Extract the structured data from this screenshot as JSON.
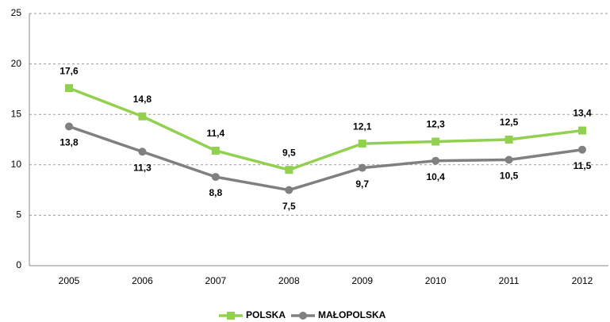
{
  "chart_data": {
    "type": "line",
    "categories": [
      "2005",
      "2006",
      "2007",
      "2008",
      "2009",
      "2010",
      "2011",
      "2012"
    ],
    "series": [
      {
        "name": "POLSKA",
        "color": "#92d050",
        "marker": "square",
        "label_position": "above",
        "values": [
          17.6,
          14.8,
          11.4,
          9.5,
          12.1,
          12.3,
          12.5,
          13.4
        ],
        "value_labels": [
          "17,6",
          "14,8",
          "11,4",
          "9,5",
          "12,1",
          "12,3",
          "12,5",
          "13,4"
        ]
      },
      {
        "name": "MAŁOPOLSKA",
        "color": "#808080",
        "marker": "circle",
        "label_position": "below",
        "values": [
          13.8,
          11.3,
          8.8,
          7.5,
          9.7,
          10.4,
          10.5,
          11.5
        ],
        "value_labels": [
          "13,8",
          "11,3",
          "8,8",
          "7,5",
          "9,7",
          "10,4",
          "10,5",
          "11,5"
        ]
      }
    ],
    "ylim": [
      0,
      25
    ],
    "yticks": [
      0,
      5,
      10,
      15,
      20,
      25
    ],
    "grid": true,
    "legend": "bottom"
  }
}
